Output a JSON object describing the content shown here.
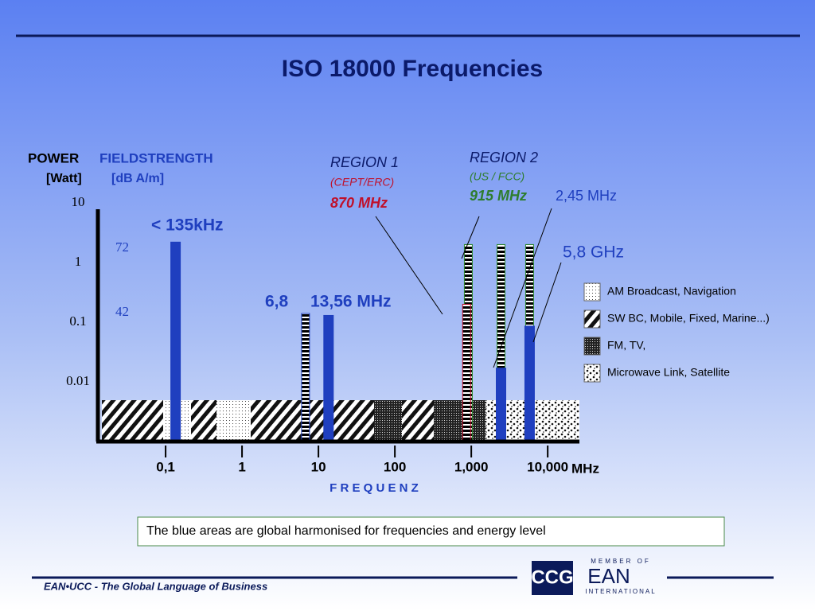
{
  "chart_data": {
    "type": "bar",
    "title": "ISO 18000 Frequencies",
    "log_x": true,
    "log_y": true,
    "xlim": [
      0.013,
      26000
    ],
    "xticks": [
      {
        "value": 0.1,
        "label": "0,1"
      },
      1,
      10,
      100,
      {
        "value": 1000,
        "label": "1,000"
      },
      {
        "value": 10000,
        "label": "10,000"
      }
    ],
    "ylim": [
      0.001,
      10
    ],
    "yticks": [
      10,
      1,
      0.1,
      0.01
    ],
    "series": [
      {
        "color": "#2e8b2e",
        "pattern": "stripes",
        "x": [
          915,
          2450,
          5800
        ],
        "values": [
          2,
          2,
          2
        ]
      },
      {
        "color": "#1f3fbf",
        "pattern": "stripes",
        "x": [
          6.78
        ],
        "values": [
          0.14
        ]
      },
      {
        "color": "#c0102a",
        "pattern": "stripes",
        "x": [
          869
        ],
        "values": [
          0.2
        ]
      },
      {
        "color": "#1f3fbf",
        "pattern": "solid",
        "x": [
          0.135,
          13.56,
          2450,
          5800
        ],
        "values": [
          2.2,
          0.13,
          0.017,
          0.086
        ]
      }
    ],
    "annotations": [
      "POWER",
      "FIELDSTRENGTH",
      "[Watt]",
      "[dB A/m]",
      "72",
      "42",
      "< 135kHz",
      "6,8",
      "13,56 MHz",
      "REGION 1",
      "(CEPT/ERC)",
      "870 MHz",
      "REGION 2",
      "(US / FCC)",
      "915 MHz",
      "2,45 MHz",
      "5,8 GHz",
      "MHz",
      "F R E Q U E N Z"
    ],
    "legend": [
      "AM  Broadcast,  Navigation",
      "SW BC, Mobile, Fixed, Marine...)",
      "FM, TV,",
      "Microwave Link, Satellite"
    ]
  },
  "caption": "The blue areas are global harmonised for frequencies and energy level",
  "footer": "EAN•UCC - The Global Language of Business",
  "logo": {
    "mark": "CCG",
    "top": "MEMBER OF",
    "name": "EAN",
    "bottom": "INTERNATIONAL"
  }
}
